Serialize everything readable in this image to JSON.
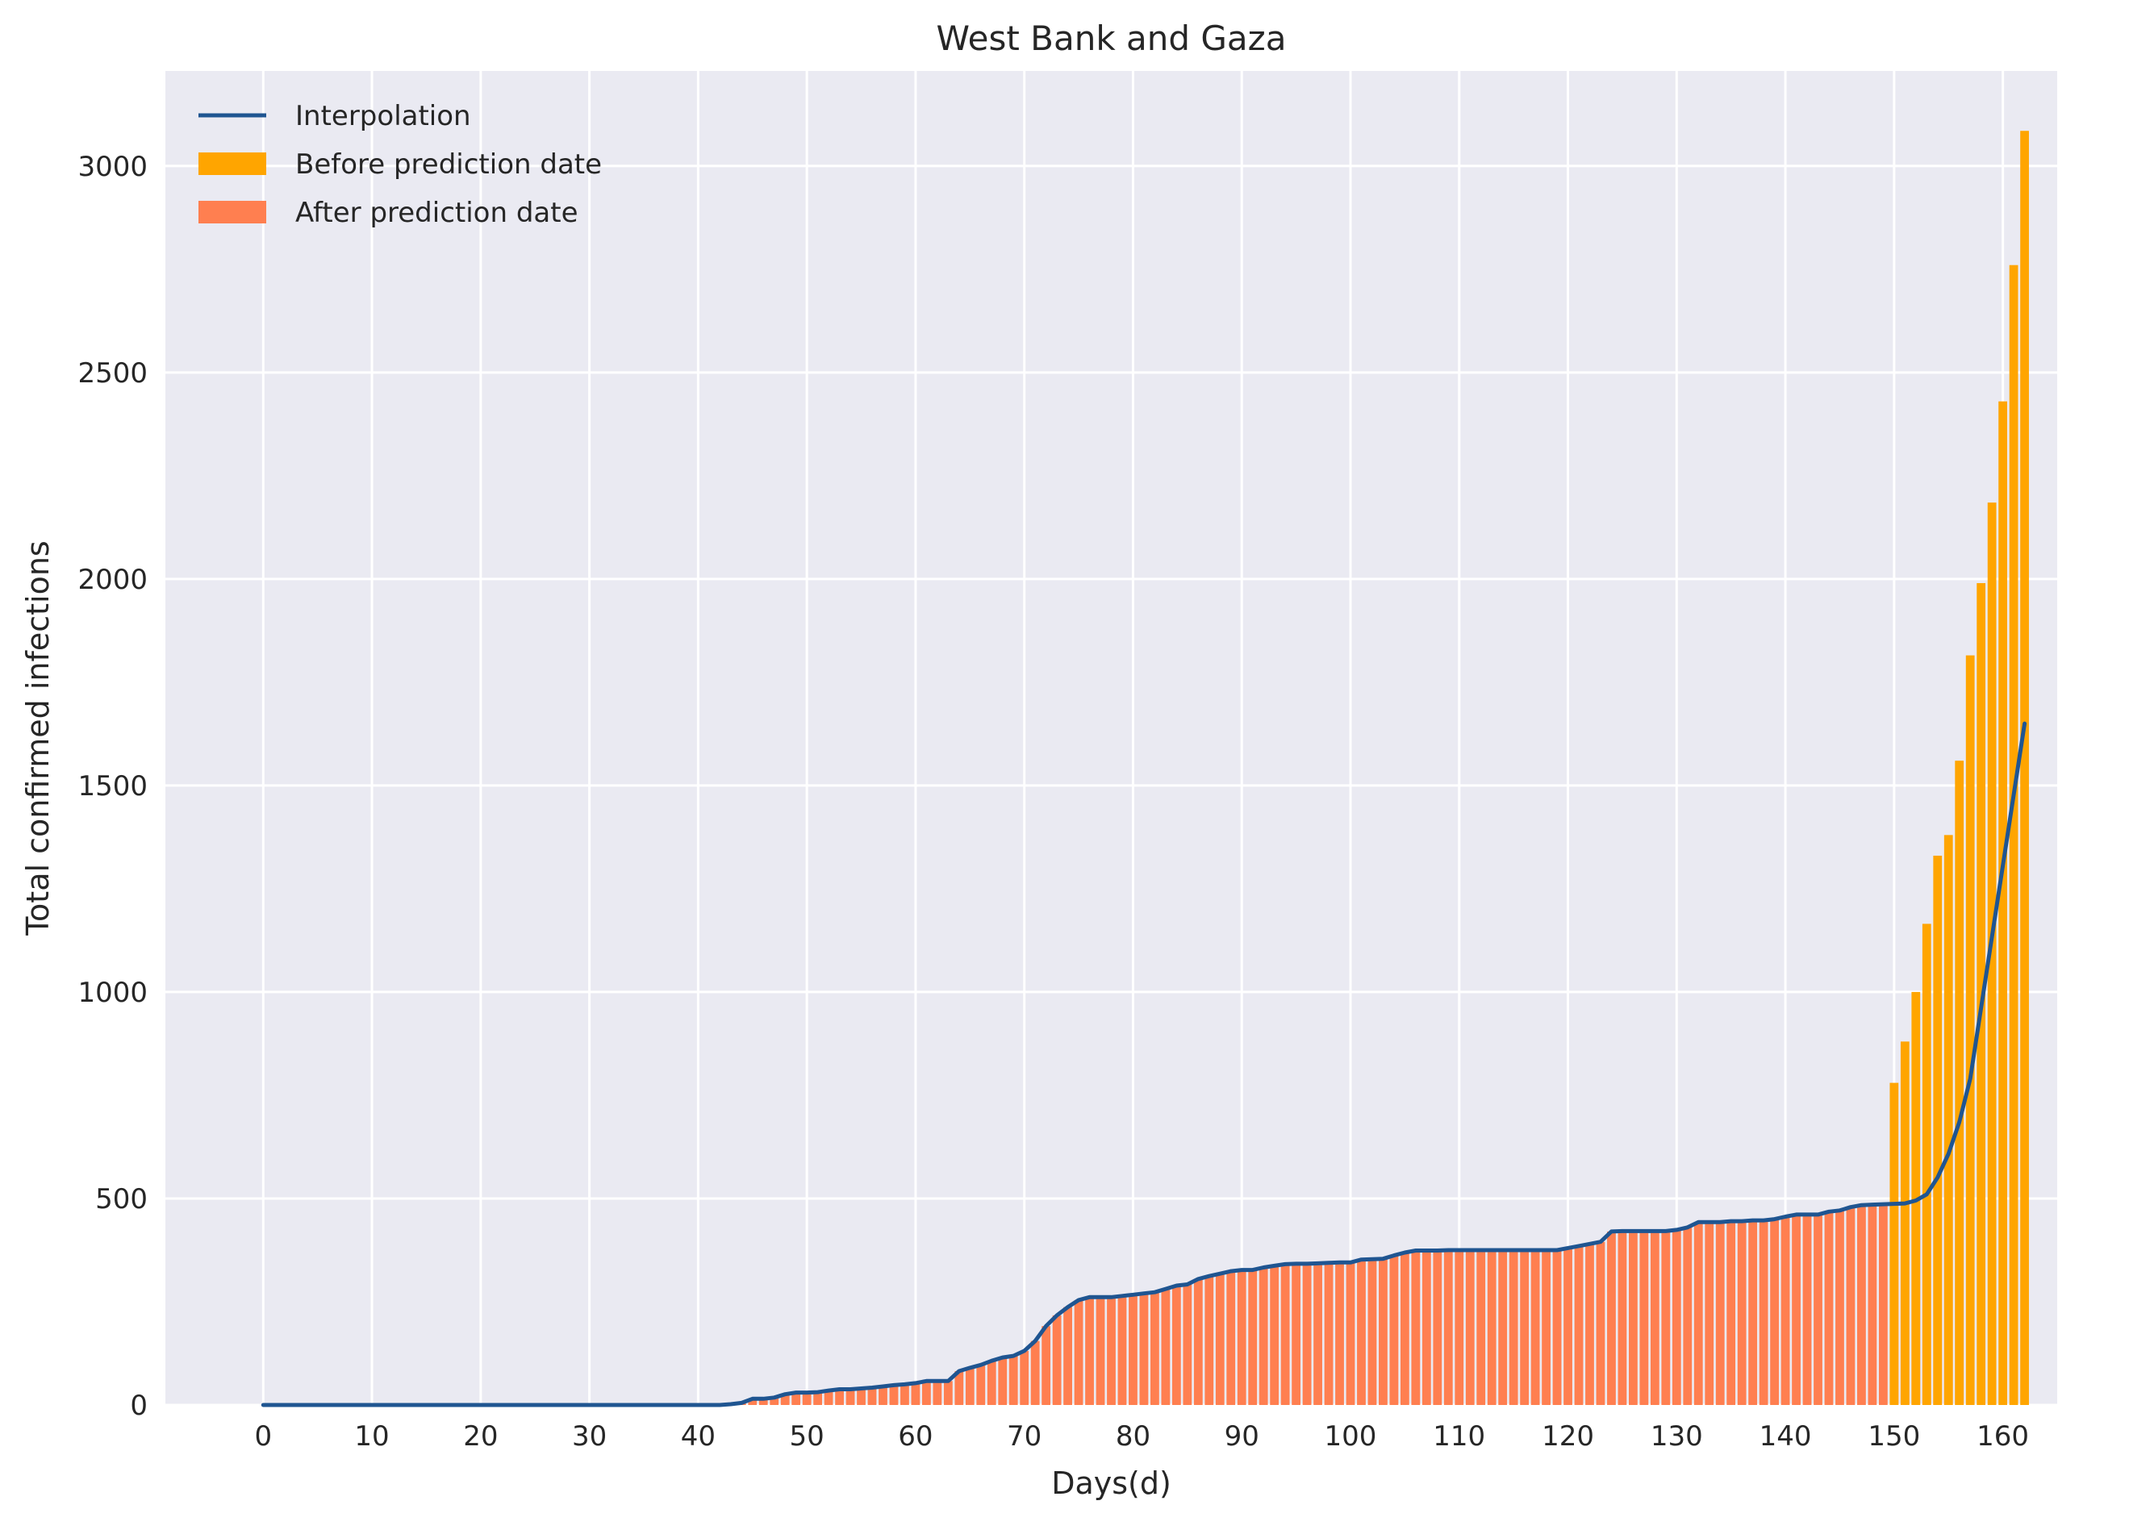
{
  "chart_data": {
    "type": "bar",
    "title": "West Bank and Gaza",
    "xlabel": "Days(d)",
    "ylabel": "Total confirmed infections",
    "xlim": [
      -9,
      165
    ],
    "ylim": [
      0,
      3230
    ],
    "x_ticks": [
      0,
      10,
      20,
      30,
      40,
      50,
      60,
      70,
      80,
      90,
      100,
      110,
      120,
      130,
      140,
      150,
      160
    ],
    "y_ticks": [
      0,
      500,
      1000,
      1500,
      2000,
      2500,
      3000
    ],
    "grid": true,
    "legend_position": "top-left",
    "series": [
      {
        "name": "After prediction date",
        "kind": "bar",
        "color": "#FF7F50",
        "x_start": 0,
        "values": [
          0,
          0,
          0,
          0,
          0,
          0,
          0,
          0,
          0,
          0,
          0,
          0,
          0,
          0,
          0,
          0,
          0,
          0,
          0,
          0,
          0,
          0,
          0,
          0,
          0,
          0,
          0,
          0,
          0,
          0,
          0,
          0,
          0,
          0,
          0,
          0,
          0,
          0,
          0,
          0,
          0,
          0,
          0,
          2,
          5,
          15,
          15,
          18,
          26,
          30,
          30,
          31,
          35,
          38,
          38,
          40,
          42,
          45,
          48,
          50,
          53,
          58,
          58,
          58,
          82,
          90,
          97,
          107,
          115,
          119,
          131,
          155,
          191,
          217,
          237,
          254,
          261,
          261,
          261,
          264,
          267,
          270,
          273,
          281,
          289,
          292,
          305,
          312,
          318,
          324,
          327,
          327,
          333,
          337,
          341,
          342,
          342,
          343,
          344,
          345,
          345,
          352,
          353,
          354,
          362,
          369,
          374,
          374,
          374,
          375,
          375,
          375,
          375,
          375,
          375,
          375,
          375,
          375,
          375,
          375,
          380,
          385,
          390,
          395,
          420,
          421,
          421,
          421,
          421,
          421,
          424,
          430,
          443,
          443,
          443,
          445,
          445,
          447,
          447,
          450,
          456,
          461,
          461,
          461,
          468,
          471,
          479,
          484,
          485,
          486,
          487,
          488,
          495,
          510,
          551,
          608,
          685
        ]
      },
      {
        "name": "Before prediction date",
        "kind": "bar",
        "color": "#FFA500",
        "x_start": 150,
        "values": [
          780,
          880,
          1000,
          1165,
          1330,
          1380,
          1560,
          1815,
          1990,
          2185,
          2430,
          2760,
          3085
        ]
      },
      {
        "name": "Interpolation",
        "kind": "line",
        "color": "#1F5591",
        "points": [
          [
            0,
            0
          ],
          [
            42,
            0
          ],
          [
            43,
            2
          ],
          [
            44,
            5
          ],
          [
            45,
            15
          ],
          [
            46,
            15
          ],
          [
            47,
            18
          ],
          [
            48,
            26
          ],
          [
            49,
            30
          ],
          [
            50,
            30
          ],
          [
            51,
            31
          ],
          [
            52,
            35
          ],
          [
            53,
            38
          ],
          [
            54,
            38
          ],
          [
            55,
            40
          ],
          [
            56,
            42
          ],
          [
            57,
            45
          ],
          [
            58,
            48
          ],
          [
            59,
            50
          ],
          [
            60,
            53
          ],
          [
            61,
            58
          ],
          [
            62,
            58
          ],
          [
            63,
            58
          ],
          [
            64,
            82
          ],
          [
            65,
            90
          ],
          [
            66,
            97
          ],
          [
            67,
            107
          ],
          [
            68,
            115
          ],
          [
            69,
            119
          ],
          [
            70,
            131
          ],
          [
            71,
            155
          ],
          [
            72,
            191
          ],
          [
            73,
            217
          ],
          [
            74,
            237
          ],
          [
            75,
            254
          ],
          [
            76,
            261
          ],
          [
            77,
            261
          ],
          [
            78,
            261
          ],
          [
            79,
            264
          ],
          [
            80,
            267
          ],
          [
            81,
            270
          ],
          [
            82,
            273
          ],
          [
            83,
            281
          ],
          [
            84,
            289
          ],
          [
            85,
            292
          ],
          [
            86,
            305
          ],
          [
            87,
            312
          ],
          [
            88,
            318
          ],
          [
            89,
            324
          ],
          [
            90,
            327
          ],
          [
            91,
            327
          ],
          [
            92,
            333
          ],
          [
            93,
            337
          ],
          [
            94,
            341
          ],
          [
            95,
            342
          ],
          [
            96,
            342
          ],
          [
            97,
            343
          ],
          [
            98,
            344
          ],
          [
            99,
            345
          ],
          [
            100,
            345
          ],
          [
            101,
            352
          ],
          [
            102,
            353
          ],
          [
            103,
            354
          ],
          [
            104,
            362
          ],
          [
            105,
            369
          ],
          [
            106,
            374
          ],
          [
            107,
            374
          ],
          [
            108,
            374
          ],
          [
            109,
            375
          ],
          [
            110,
            375
          ],
          [
            111,
            375
          ],
          [
            112,
            375
          ],
          [
            113,
            375
          ],
          [
            114,
            375
          ],
          [
            115,
            375
          ],
          [
            116,
            375
          ],
          [
            117,
            375
          ],
          [
            118,
            375
          ],
          [
            119,
            375
          ],
          [
            120,
            380
          ],
          [
            121,
            385
          ],
          [
            122,
            390
          ],
          [
            123,
            395
          ],
          [
            124,
            420
          ],
          [
            125,
            421
          ],
          [
            126,
            421
          ],
          [
            127,
            421
          ],
          [
            128,
            421
          ],
          [
            129,
            421
          ],
          [
            130,
            424
          ],
          [
            131,
            430
          ],
          [
            132,
            443
          ],
          [
            133,
            443
          ],
          [
            134,
            443
          ],
          [
            135,
            445
          ],
          [
            136,
            445
          ],
          [
            137,
            447
          ],
          [
            138,
            447
          ],
          [
            139,
            450
          ],
          [
            140,
            456
          ],
          [
            141,
            461
          ],
          [
            142,
            461
          ],
          [
            143,
            461
          ],
          [
            144,
            468
          ],
          [
            145,
            471
          ],
          [
            146,
            479
          ],
          [
            147,
            484
          ],
          [
            148,
            485
          ],
          [
            149,
            486
          ],
          [
            150,
            487
          ],
          [
            151,
            488
          ],
          [
            152,
            495
          ],
          [
            153,
            510
          ],
          [
            154,
            551
          ],
          [
            155,
            608
          ],
          [
            156,
            685
          ],
          [
            157,
            790
          ],
          [
            162,
            1650
          ]
        ]
      }
    ]
  }
}
